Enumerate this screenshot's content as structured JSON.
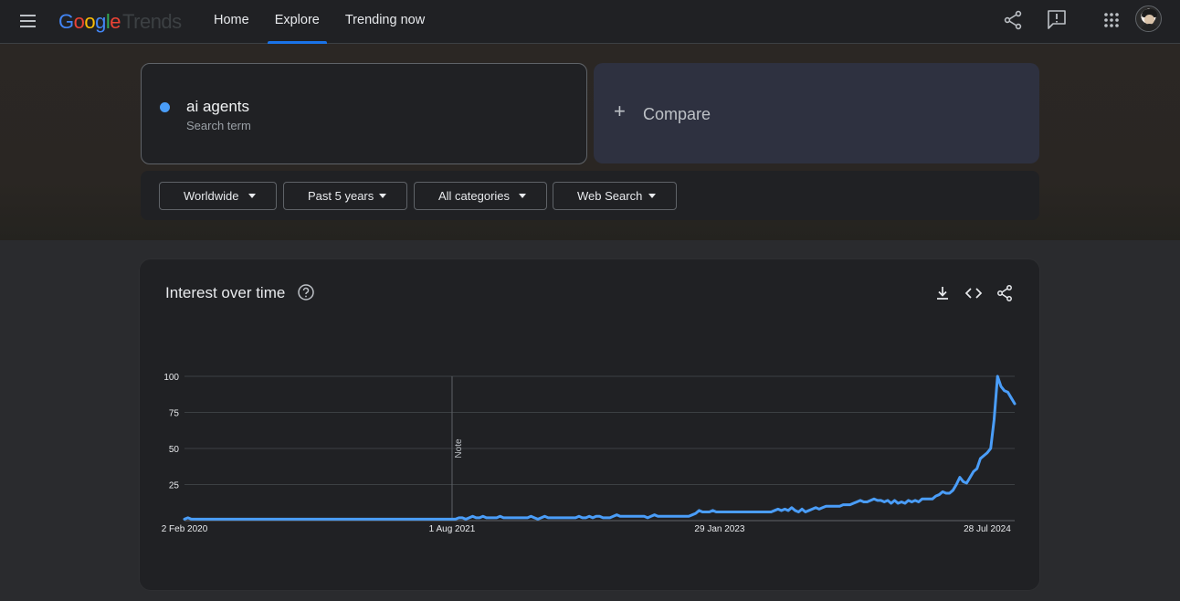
{
  "header": {
    "logo": {
      "google": "Google",
      "product": "Trends"
    },
    "nav": [
      {
        "label": "Home",
        "active": false
      },
      {
        "label": "Explore",
        "active": true
      },
      {
        "label": "Trending now",
        "active": false
      }
    ],
    "icons": [
      "menu-icon",
      "share-icon",
      "feedback-icon",
      "apps-grid-icon",
      "account-avatar"
    ]
  },
  "search": {
    "term": "ai agents",
    "term_type": "Search term",
    "term_color": "#4a9df8",
    "compare_label": "Compare"
  },
  "filters": [
    {
      "label": "Worldwide"
    },
    {
      "label": "Past 5 years"
    },
    {
      "label": "All categories"
    },
    {
      "label": "Web Search"
    }
  ],
  "interest_card": {
    "title": "Interest over time",
    "icons": [
      "help-icon",
      "download-icon",
      "embed-icon",
      "share-icon"
    ]
  },
  "chart_data": {
    "type": "line",
    "title": "Interest over time",
    "x_tick_labels": [
      "2 Feb 2020",
      "1 Aug 2021",
      "29 Jan 2023",
      "28 Jul 2024"
    ],
    "y_tick_labels": [
      "100",
      "75",
      "50",
      "25"
    ],
    "ylim": [
      0,
      100
    ],
    "grid": true,
    "annotation": {
      "label": "Note",
      "week_index": 78
    },
    "series": [
      {
        "color": "#4a9df8",
        "values": [
          1,
          2,
          1,
          1,
          1,
          1,
          1,
          1,
          1,
          1,
          1,
          1,
          1,
          1,
          1,
          1,
          1,
          1,
          1,
          1,
          1,
          1,
          1,
          1,
          1,
          1,
          1,
          1,
          1,
          1,
          1,
          1,
          1,
          1,
          1,
          1,
          1,
          1,
          1,
          1,
          1,
          1,
          1,
          1,
          1,
          1,
          1,
          1,
          1,
          1,
          1,
          1,
          1,
          1,
          1,
          1,
          1,
          1,
          1,
          1,
          1,
          1,
          1,
          1,
          1,
          1,
          1,
          1,
          1,
          1,
          1,
          1,
          1,
          1,
          1,
          1,
          1,
          1,
          1,
          1,
          2,
          2,
          1,
          2,
          3,
          2,
          2,
          3,
          2,
          2,
          2,
          2,
          3,
          2,
          2,
          2,
          2,
          2,
          2,
          2,
          2,
          3,
          2,
          1,
          2,
          3,
          2,
          2,
          2,
          2,
          2,
          2,
          2,
          2,
          2,
          3,
          2,
          2,
          3,
          2,
          3,
          3,
          2,
          2,
          2,
          3,
          4,
          3,
          3,
          3,
          3,
          3,
          3,
          3,
          3,
          2,
          3,
          4,
          3,
          3,
          3,
          3,
          3,
          3,
          3,
          3,
          3,
          3,
          4,
          5,
          7,
          6,
          6,
          6,
          7,
          6,
          6,
          6,
          6,
          6,
          6,
          6,
          6,
          6,
          6,
          6,
          6,
          6,
          6,
          6,
          6,
          6,
          7,
          8,
          7,
          8,
          7,
          9,
          7,
          6,
          8,
          6,
          7,
          8,
          9,
          8,
          9,
          10,
          10,
          10,
          10,
          10,
          11,
          11,
          11,
          12,
          13,
          14,
          13,
          13,
          14,
          15,
          14,
          14,
          13,
          14,
          12,
          14,
          12,
          13,
          12,
          14,
          13,
          14,
          13,
          15,
          15,
          15,
          15,
          17,
          18,
          20,
          19,
          19,
          21,
          25,
          30,
          27,
          26,
          30,
          34,
          36,
          43,
          45,
          47,
          50,
          70,
          100,
          93,
          90,
          89,
          85,
          81
        ]
      }
    ]
  }
}
